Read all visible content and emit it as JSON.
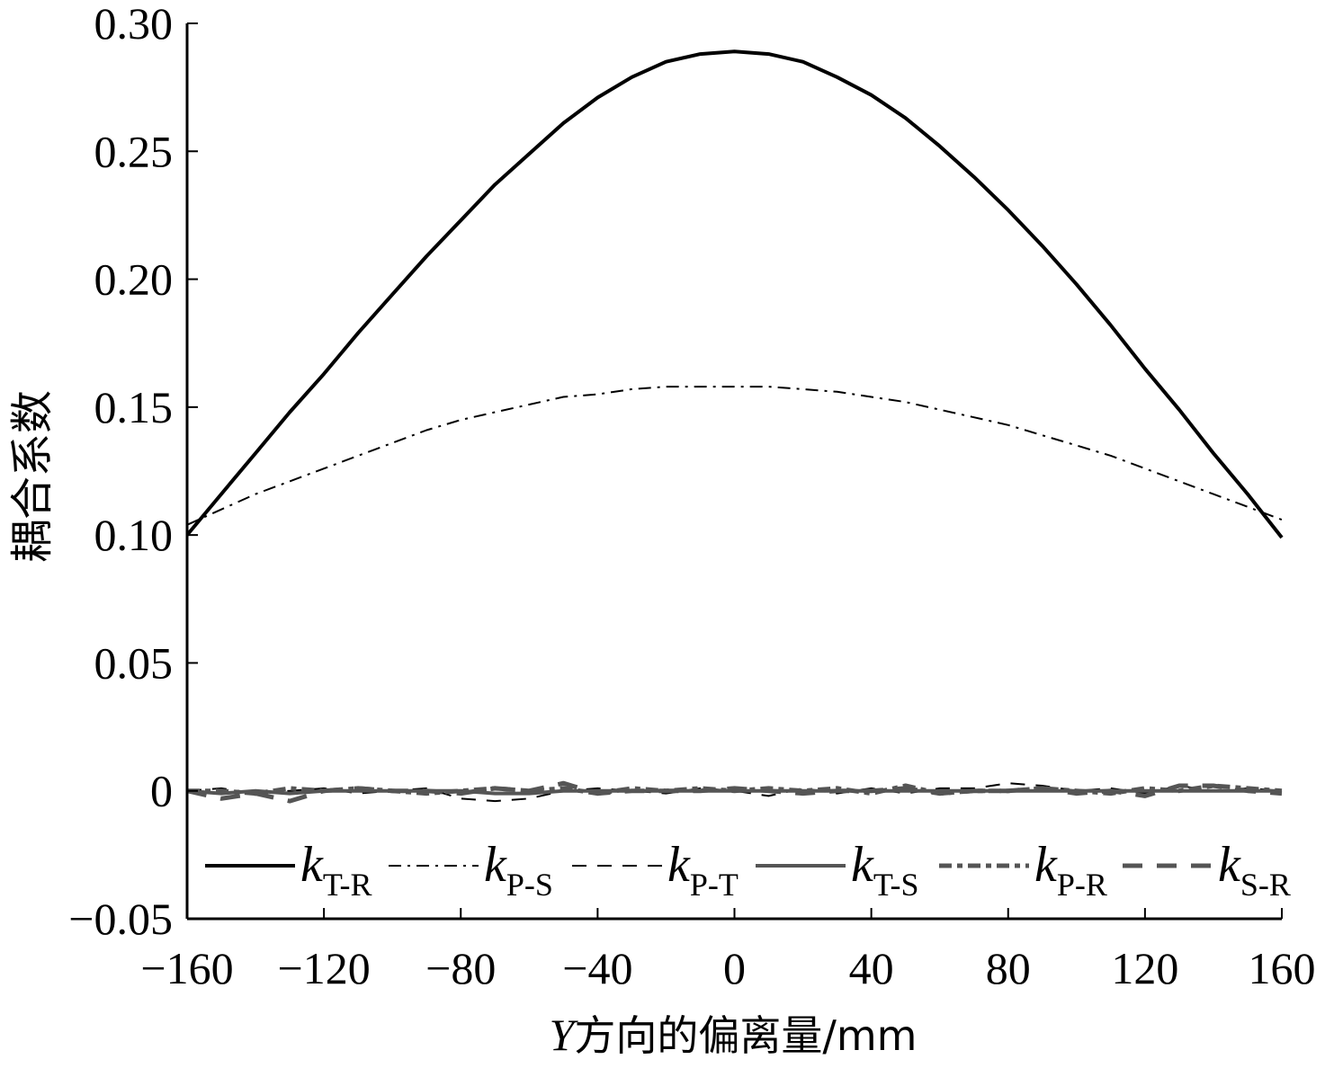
{
  "chart_data": {
    "type": "line",
    "xlabel_var": "Y",
    "xlabel_rest": "方向的偏离量/mm",
    "ylabel": "耦合系数",
    "xlim": [
      -160,
      160
    ],
    "ylim": [
      -0.05,
      0.3
    ],
    "xticks": [
      -160,
      -120,
      -80,
      -40,
      0,
      40,
      80,
      120,
      160
    ],
    "xtick_labels": [
      "−160",
      "−120",
      "−80",
      "−40",
      "0",
      "40",
      "80",
      "120",
      "160"
    ],
    "yticks": [
      -0.05,
      0,
      0.05,
      0.1,
      0.15,
      0.2,
      0.25,
      0.3
    ],
    "ytick_labels": [
      "−0.05",
      "0",
      "0.05",
      "0.10",
      "0.15",
      "0.20",
      "0.25",
      "0.30"
    ],
    "grid": false,
    "legend_position": "bottom, single row",
    "x": [
      -160,
      -150,
      -140,
      -130,
      -120,
      -110,
      -100,
      -90,
      -80,
      -70,
      -60,
      -50,
      -40,
      -30,
      -20,
      -10,
      0,
      10,
      20,
      30,
      40,
      50,
      60,
      70,
      80,
      90,
      100,
      110,
      120,
      130,
      140,
      150,
      160
    ],
    "series": [
      {
        "name": "kT-R",
        "base": "k",
        "sub": "T-R",
        "color": "#000000",
        "style": "solid",
        "width": 4,
        "values": [
          0.1,
          0.116,
          0.132,
          0.148,
          0.163,
          0.179,
          0.194,
          0.209,
          0.223,
          0.237,
          0.249,
          0.261,
          0.271,
          0.279,
          0.285,
          0.288,
          0.289,
          0.288,
          0.285,
          0.279,
          0.272,
          0.263,
          0.252,
          0.24,
          0.227,
          0.213,
          0.198,
          0.182,
          0.165,
          0.149,
          0.132,
          0.116,
          0.099
        ]
      },
      {
        "name": "kP-S",
        "base": "k",
        "sub": "P-S",
        "color": "#000000",
        "style": "dashdot",
        "width": 2,
        "values": [
          0.104,
          0.11,
          0.116,
          0.121,
          0.126,
          0.131,
          0.136,
          0.141,
          0.145,
          0.148,
          0.151,
          0.154,
          0.155,
          0.157,
          0.158,
          0.158,
          0.158,
          0.158,
          0.157,
          0.156,
          0.154,
          0.152,
          0.149,
          0.146,
          0.143,
          0.139,
          0.135,
          0.131,
          0.126,
          0.121,
          0.116,
          0.111,
          0.106
        ]
      },
      {
        "name": "kP-T",
        "base": "k",
        "sub": "P-T",
        "color": "#000000",
        "style": "dashed",
        "width": 2,
        "values": [
          0,
          0.001,
          -0.001,
          0,
          0.001,
          -0.001,
          0,
          0.001,
          -0.003,
          -0.004,
          -0.003,
          0,
          0.001,
          0,
          -0.001,
          0.001,
          0,
          -0.002,
          0.001,
          -0.001,
          0.001,
          -0.001,
          0.001,
          0.001,
          0.003,
          0.002,
          0,
          0.001,
          -0.001,
          0.002,
          0,
          0.001,
          0
        ]
      },
      {
        "name": "kT-S",
        "base": "k",
        "sub": "T-S",
        "color": "#555555",
        "style": "solid",
        "width": 4,
        "values": [
          0,
          -0.001,
          0,
          -0.001,
          0,
          0,
          0,
          0,
          0,
          -0.001,
          -0.001,
          0,
          0,
          0,
          0,
          0,
          0,
          0,
          0,
          0,
          0,
          0,
          0,
          0,
          0,
          0,
          0,
          0,
          0,
          0,
          0,
          0,
          0
        ]
      },
      {
        "name": "kP-R",
        "base": "k",
        "sub": "P-R",
        "color": "#555555",
        "style": "dashdot",
        "width": 5,
        "values": [
          0,
          0,
          -0.001,
          0.001,
          0,
          0.001,
          0,
          -0.001,
          0,
          0.001,
          0,
          0.001,
          -0.001,
          0.001,
          0,
          0.001,
          0,
          0.001,
          0,
          0.001,
          -0.001,
          0.002,
          -0.001,
          0,
          0,
          0.001,
          0,
          -0.001,
          0.001,
          0,
          0.002,
          0.001,
          0
        ]
      },
      {
        "name": "kS-R",
        "base": "k",
        "sub": "S-R",
        "color": "#555555",
        "style": "dashed",
        "width": 5,
        "values": [
          0,
          -0.003,
          -0.001,
          -0.004,
          0,
          0.001,
          0,
          0,
          -0.001,
          0.001,
          0,
          0.003,
          -0.001,
          0,
          0,
          0,
          0.001,
          0,
          -0.001,
          0,
          0,
          0.001,
          -0.001,
          0,
          0,
          0.001,
          -0.001,
          0,
          -0.002,
          0.002,
          0.002,
          0,
          -0.001
        ]
      }
    ]
  }
}
